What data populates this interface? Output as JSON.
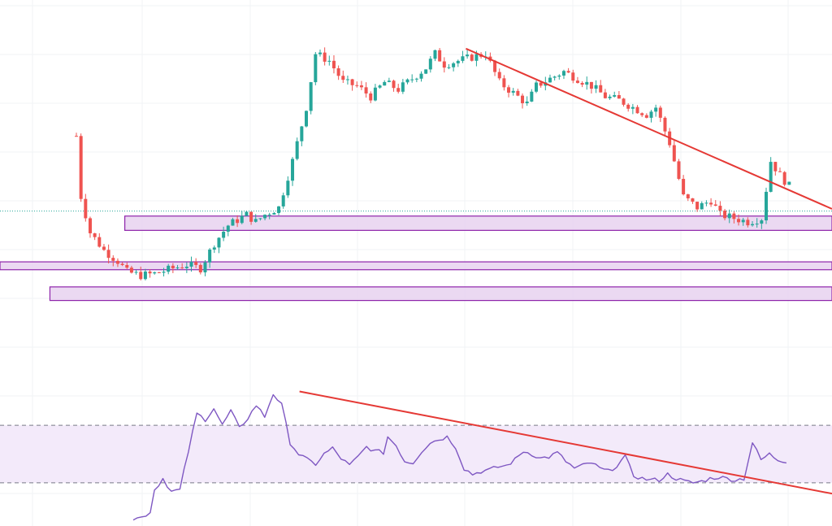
{
  "chart_data": [
    {
      "type": "candlestick",
      "title": "",
      "xlabel": "",
      "ylabel": "",
      "xlim": [
        0,
        200
      ],
      "ylim": [
        0,
        100
      ],
      "grid": true,
      "colors": {
        "up": "#26a69a",
        "down": "#ef5350",
        "zone_fill": "#e8d2f0",
        "zone_border": "#8e24aa",
        "trendline": "#e53935"
      },
      "candles": [],
      "zones": [
        {
          "x0": 30,
          "x1": 200,
          "y0": 35.6,
          "y1": 39.6
        },
        {
          "x0": 0,
          "x1": 200,
          "y0": 24.6,
          "y1": 26.8
        },
        {
          "x0": 12,
          "x1": 200,
          "y0": 16.0,
          "y1": 19.8
        }
      ],
      "trendlines": [
        {
          "x0": 112,
          "y0": 86.4,
          "x1": 200,
          "y1": 41.6
        }
      ],
      "price_line": 41.0
    },
    {
      "type": "line",
      "title": "",
      "xlabel": "",
      "ylabel": "",
      "xlim": [
        0,
        200
      ],
      "ylim": [
        0,
        100
      ],
      "band": {
        "upper": 70,
        "lower": 30
      },
      "colors": {
        "line": "#7e57c2",
        "band_fill": "#f3eafa",
        "trendline": "#e53935"
      },
      "series": [
        {
          "values": []
        }
      ],
      "trendlines": [
        {
          "x0": 72,
          "y0": 93.5,
          "x1": 200,
          "y1": 22.5
        }
      ]
    }
  ]
}
